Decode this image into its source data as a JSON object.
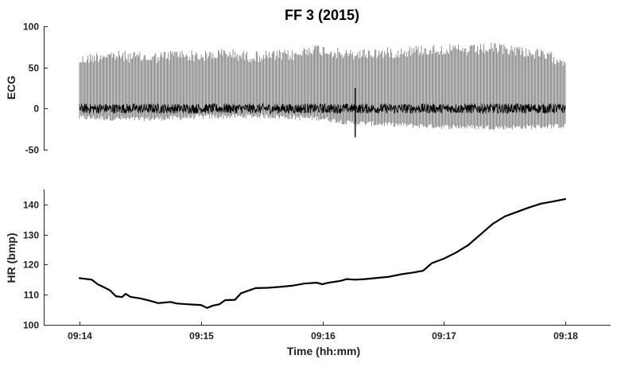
{
  "title": "FF 3 (2015)",
  "chart_data": [
    {
      "type": "line",
      "ylabel": "ECG",
      "xlabel": "",
      "ylim": [
        -50,
        100
      ],
      "yticks": [
        -50,
        0,
        50,
        100
      ],
      "xlim_minutes": [
        0,
        4.3
      ],
      "xticks_shown": false,
      "grid": false,
      "series": [
        {
          "color": "#808080",
          "description_type": "dense-beats-envelope",
          "t_start_min": 0.0,
          "t_end_min": 4.0,
          "peak_envelope": [
            {
              "t": 0.0,
              "v": 65
            },
            {
              "t": 0.2,
              "v": 72
            },
            {
              "t": 0.4,
              "v": 70
            },
            {
              "t": 0.6,
              "v": 68
            },
            {
              "t": 0.8,
              "v": 73
            },
            {
              "t": 1.0,
              "v": 70
            },
            {
              "t": 1.2,
              "v": 74
            },
            {
              "t": 1.4,
              "v": 70
            },
            {
              "t": 1.6,
              "v": 71
            },
            {
              "t": 1.8,
              "v": 72
            },
            {
              "t": 1.9,
              "v": 80
            },
            {
              "t": 2.0,
              "v": 78
            },
            {
              "t": 2.2,
              "v": 72
            },
            {
              "t": 2.4,
              "v": 74
            },
            {
              "t": 2.6,
              "v": 75
            },
            {
              "t": 2.8,
              "v": 78
            },
            {
              "t": 3.0,
              "v": 79
            },
            {
              "t": 3.2,
              "v": 77
            },
            {
              "t": 3.4,
              "v": 80
            },
            {
              "t": 3.6,
              "v": 78
            },
            {
              "t": 3.8,
              "v": 72
            },
            {
              "t": 4.0,
              "v": 65
            }
          ],
          "trough_envelope": [
            {
              "t": 0.0,
              "v": -14
            },
            {
              "t": 0.5,
              "v": -16
            },
            {
              "t": 1.0,
              "v": -13
            },
            {
              "t": 1.5,
              "v": -12
            },
            {
              "t": 2.0,
              "v": -15
            },
            {
              "t": 2.2,
              "v": -20
            },
            {
              "t": 2.5,
              "v": -22
            },
            {
              "t": 3.0,
              "v": -25
            },
            {
              "t": 3.5,
              "v": -26
            },
            {
              "t": 4.0,
              "v": -24
            }
          ]
        },
        {
          "color": "#000000",
          "description_type": "baseline-noise",
          "t_start_min": 0.0,
          "t_end_min": 4.0,
          "baseline": 0,
          "noise_amplitude": 6,
          "artifact": {
            "t": 2.27,
            "min": -35,
            "max": 25
          }
        }
      ]
    },
    {
      "type": "line",
      "ylabel": "HR (bmp)",
      "xlabel": "Time (hh:mm)",
      "ylim": [
        100,
        145
      ],
      "yticks": [
        100,
        110,
        120,
        130,
        140
      ],
      "xlim_minutes": [
        -0.2,
        4.3
      ],
      "xticks_minutes": [
        0,
        1,
        2,
        3,
        4
      ],
      "xtick_labels": [
        "09:14",
        "09:15",
        "09:16",
        "09:17",
        "09:18"
      ],
      "grid": false,
      "series": [
        {
          "color": "#000000",
          "points": [
            [
              0.0,
              115.5
            ],
            [
              0.1,
              115.0
            ],
            [
              0.15,
              113.5
            ],
            [
              0.25,
              111.5
            ],
            [
              0.3,
              109.5
            ],
            [
              0.35,
              109.2
            ],
            [
              0.38,
              110.3
            ],
            [
              0.42,
              109.3
            ],
            [
              0.5,
              108.8
            ],
            [
              0.58,
              108.0
            ],
            [
              0.65,
              107.2
            ],
            [
              0.7,
              107.4
            ],
            [
              0.75,
              107.6
            ],
            [
              0.8,
              107.1
            ],
            [
              0.9,
              106.8
            ],
            [
              1.0,
              106.6
            ],
            [
              1.05,
              105.6
            ],
            [
              1.1,
              106.4
            ],
            [
              1.15,
              106.8
            ],
            [
              1.2,
              108.2
            ],
            [
              1.28,
              108.3
            ],
            [
              1.33,
              110.5
            ],
            [
              1.4,
              111.5
            ],
            [
              1.45,
              112.2
            ],
            [
              1.55,
              112.3
            ],
            [
              1.65,
              112.6
            ],
            [
              1.75,
              113.0
            ],
            [
              1.85,
              113.7
            ],
            [
              1.95,
              114.0
            ],
            [
              2.0,
              113.5
            ],
            [
              2.05,
              114.0
            ],
            [
              2.15,
              114.6
            ],
            [
              2.2,
              115.2
            ],
            [
              2.27,
              115.0
            ],
            [
              2.35,
              115.2
            ],
            [
              2.45,
              115.6
            ],
            [
              2.55,
              116.0
            ],
            [
              2.65,
              116.8
            ],
            [
              2.75,
              117.4
            ],
            [
              2.83,
              118.0
            ],
            [
              2.9,
              120.5
            ],
            [
              3.0,
              122.0
            ],
            [
              3.1,
              124.0
            ],
            [
              3.2,
              126.5
            ],
            [
              3.3,
              130.0
            ],
            [
              3.4,
              133.5
            ],
            [
              3.5,
              136.0
            ],
            [
              3.6,
              137.5
            ],
            [
              3.7,
              139.0
            ],
            [
              3.8,
              140.3
            ],
            [
              3.9,
              141.0
            ],
            [
              4.0,
              141.8
            ]
          ]
        }
      ]
    }
  ]
}
